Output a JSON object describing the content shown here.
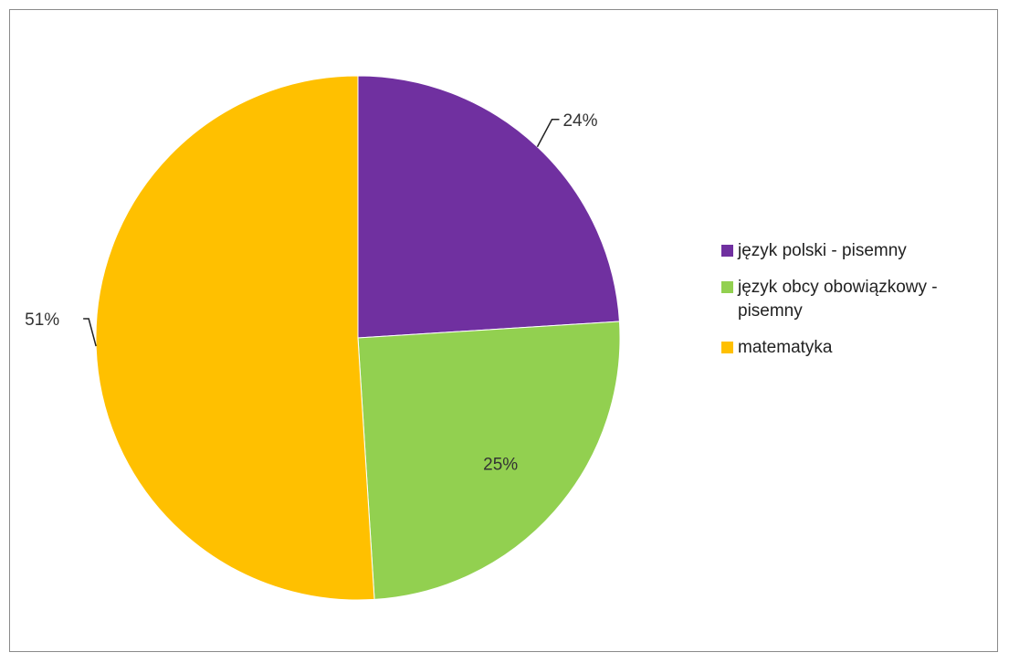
{
  "chart_data": {
    "type": "pie",
    "categories": [
      "język polski - pisemny",
      "język obcy obowiązkowy - pisemny",
      "matematyka"
    ],
    "values": [
      24,
      25,
      51
    ],
    "data_labels": [
      "24%",
      "25%",
      "51%"
    ],
    "colors": [
      "#7030a0",
      "#92d050",
      "#ffc000"
    ],
    "legend_position": "right"
  }
}
